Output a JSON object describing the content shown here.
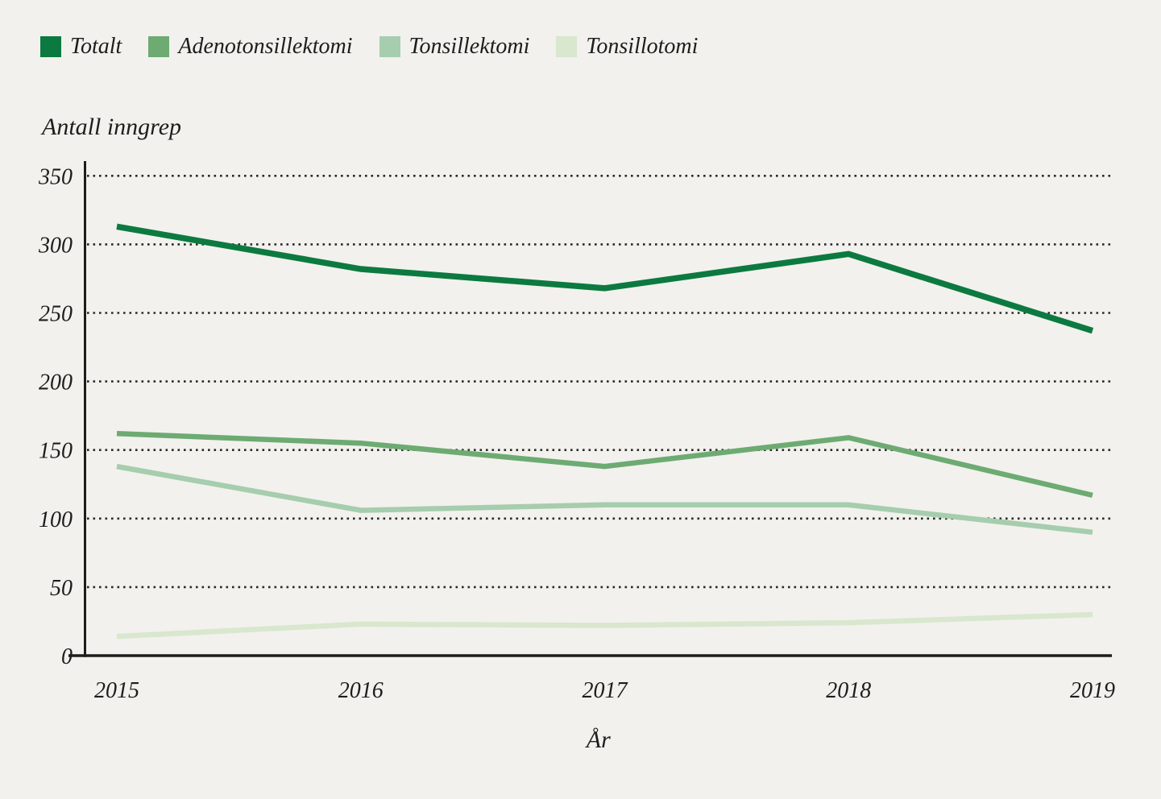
{
  "colors": {
    "background": "#f2f1ee",
    "axis": "#1d1d1b",
    "text": "#1d1d1b",
    "gridline": "#2a2a26"
  },
  "chart_data": {
    "type": "line",
    "title": "",
    "ylabel": "Antall inngrep",
    "xlabel": "År",
    "categories": [
      "2015",
      "2016",
      "2017",
      "2018",
      "2019"
    ],
    "yticks": [
      0,
      50,
      100,
      150,
      200,
      250,
      300,
      350
    ],
    "ylim": [
      0,
      350
    ],
    "grid": "horizontal-dotted",
    "legend_position": "top-left",
    "series": [
      {
        "name": "Totalt",
        "color": "#0c7a40",
        "values": [
          313,
          282,
          268,
          293,
          237
        ]
      },
      {
        "name": "Adenotonsillektomi",
        "color": "#6dab72",
        "values": [
          162,
          155,
          138,
          159,
          117
        ]
      },
      {
        "name": "Tonsillektomi",
        "color": "#a6cdad",
        "values": [
          138,
          106,
          110,
          110,
          90
        ]
      },
      {
        "name": "Tonsillotomi",
        "color": "#d8e7cd",
        "values": [
          14,
          23,
          22,
          24,
          30
        ]
      }
    ]
  }
}
